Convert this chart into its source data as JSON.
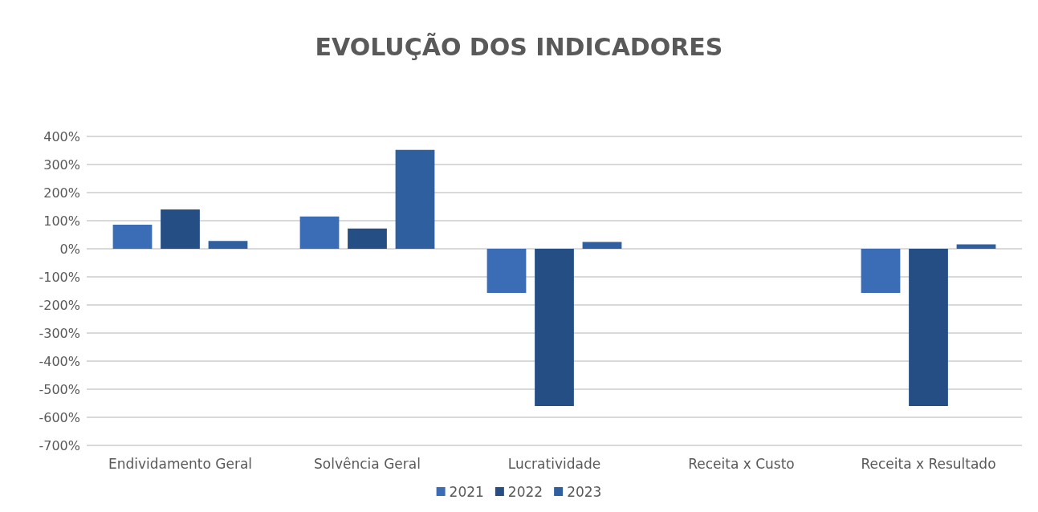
{
  "chart_data": {
    "type": "bar",
    "title": "EVOLUÇÃO DOS INDICADORES",
    "categories": [
      "Endividamento Geral",
      "Solvência Geral",
      "Lucratividade",
      "Receita x Custo",
      "Receita x Resultado"
    ],
    "series": [
      {
        "name": "2021",
        "color": "#3a6db5",
        "values": [
          86,
          115,
          -157,
          0,
          -157
        ]
      },
      {
        "name": "2022",
        "color": "#254e85",
        "values": [
          140,
          72,
          -560,
          0,
          -560
        ]
      },
      {
        "name": "2023",
        "color": "#2f5f9e",
        "values": [
          28,
          352,
          24,
          0,
          16
        ]
      }
    ],
    "ylim": [
      -700,
      400
    ],
    "yticks": [
      {
        "value": -700,
        "label": "-700%"
      },
      {
        "value": -600,
        "label": "-600%"
      },
      {
        "value": -500,
        "label": "-500%"
      },
      {
        "value": -400,
        "label": "-400%"
      },
      {
        "value": -300,
        "label": "-300%"
      },
      {
        "value": -200,
        "label": "-200%"
      },
      {
        "value": -100,
        "label": "-100%"
      },
      {
        "value": 0,
        "label": "0%"
      },
      {
        "value": 100,
        "label": "100%"
      },
      {
        "value": 200,
        "label": "200%"
      },
      {
        "value": 300,
        "label": "300%"
      },
      {
        "value": 400,
        "label": "400%"
      }
    ],
    "grid": "y",
    "legend": "bottom"
  }
}
